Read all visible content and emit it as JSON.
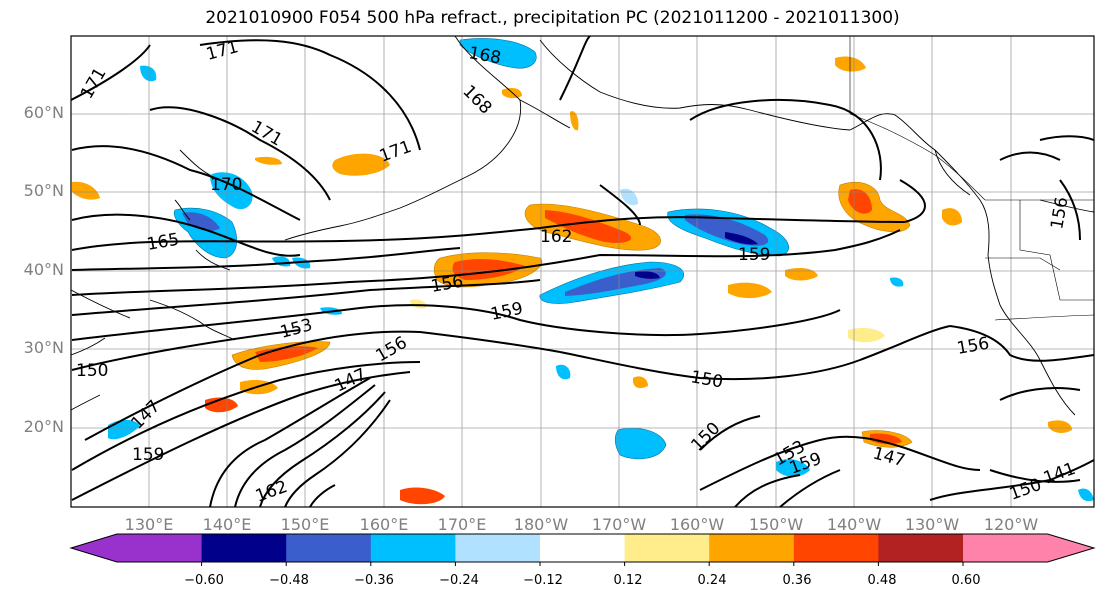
{
  "title": "2021010900 F054 500 hPa refract., precipitation PC (2021011200 - 2021011300)",
  "lat_labels": [
    "60°N",
    "50°N",
    "40°N",
    "30°N",
    "20°N"
  ],
  "lon_labels": [
    "130°E",
    "140°E",
    "150°E",
    "160°E",
    "170°E",
    "180°W",
    "170°W",
    "160°W",
    "150°W",
    "140°W",
    "130°W",
    "120°W"
  ],
  "colorbar": {
    "ticks": [
      "−0.60",
      "−0.48",
      "−0.36",
      "−0.24",
      "−0.12",
      "0.12",
      "0.24",
      "0.36",
      "0.48",
      "0.60"
    ],
    "colors": [
      "#9932cc",
      "#00008b",
      "#3a5fcd",
      "#00bfff",
      "#b0e2ff",
      "#ffffff",
      "#ffec8b",
      "#ffa500",
      "#ff4500",
      "#b22222",
      "#ff82ab"
    ]
  },
  "contour_labels": [
    "171",
    "171",
    "171",
    "170",
    "168",
    "168",
    "171",
    "165",
    "162",
    "159",
    "156",
    "159",
    "153",
    "150",
    "147",
    "147",
    "159",
    "156",
    "162",
    "150",
    "150",
    "156",
    "156",
    "159",
    "153",
    "147",
    "150",
    "141"
  ]
}
